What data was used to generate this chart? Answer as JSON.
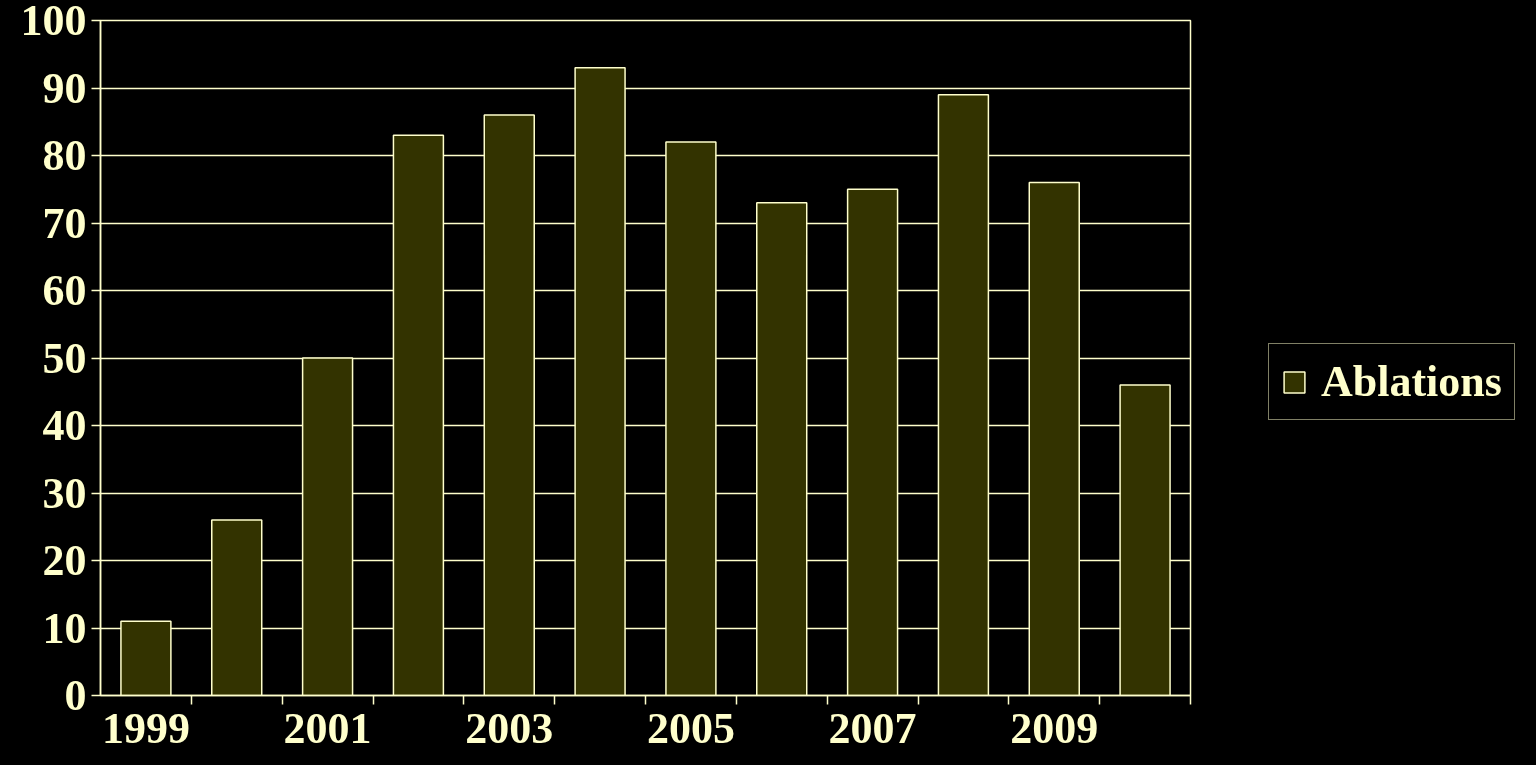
{
  "chart_data": {
    "type": "bar",
    "categories": [
      "1999",
      null,
      "2001",
      null,
      "2003",
      null,
      "2005",
      null,
      "2007",
      null,
      "2009",
      null
    ],
    "series": [
      {
        "name": "Ablations",
        "color": "#333300",
        "values": [
          11,
          26,
          50,
          83,
          86,
          93,
          82,
          73,
          75,
          89,
          76,
          46
        ]
      }
    ],
    "ylim": [
      0,
      100
    ],
    "yticks": [
      0,
      10,
      20,
      30,
      40,
      50,
      60,
      70,
      80,
      90,
      100
    ],
    "grid": "y",
    "legend": "right"
  }
}
